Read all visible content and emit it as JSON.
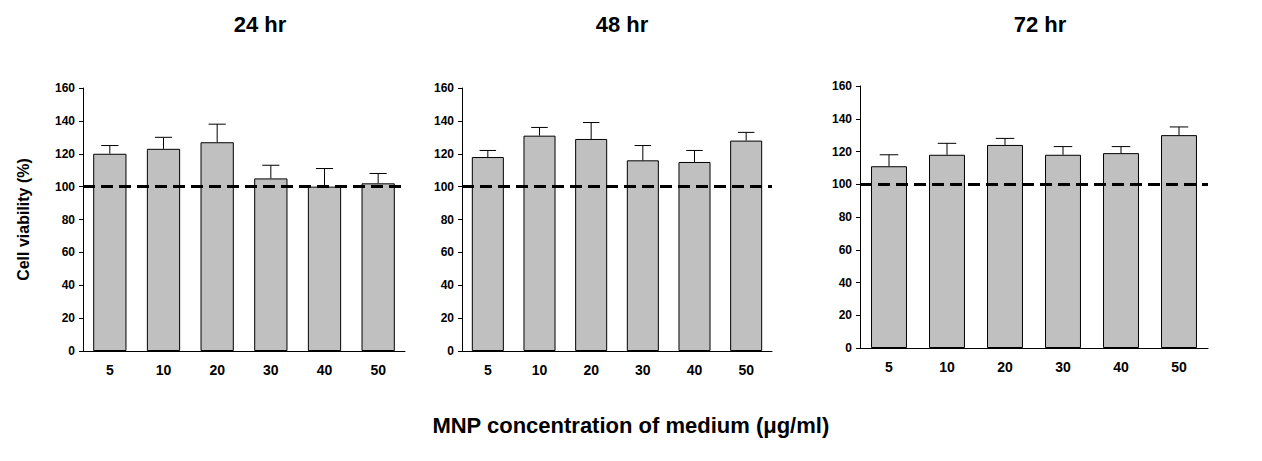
{
  "chart_data": [
    {
      "type": "bar",
      "title": "24 hr",
      "ylabel": "Cell viability (%)",
      "categories": [
        "5",
        "10",
        "20",
        "30",
        "40",
        "50"
      ],
      "values": [
        120,
        123,
        127,
        105,
        100,
        102
      ],
      "errors": [
        5,
        7,
        11,
        8,
        11,
        6
      ],
      "color": "#c0c0c0",
      "reference_line": 100,
      "ylim": [
        0,
        160
      ],
      "yticks": [
        0,
        20,
        40,
        60,
        80,
        100,
        120,
        140,
        160
      ]
    },
    {
      "type": "bar",
      "title": "48 hr",
      "categories": [
        "5",
        "10",
        "20",
        "30",
        "40",
        "50"
      ],
      "values": [
        118,
        131,
        129,
        116,
        115,
        128
      ],
      "errors": [
        4,
        5,
        10,
        9,
        7,
        5
      ],
      "color": "#c0c0c0",
      "reference_line": 100,
      "ylim": [
        0,
        160
      ],
      "yticks": [
        0,
        20,
        40,
        60,
        80,
        100,
        120,
        140,
        160
      ]
    },
    {
      "type": "bar",
      "title": "72 hr",
      "categories": [
        "5",
        "10",
        "20",
        "30",
        "40",
        "50"
      ],
      "values": [
        111,
        118,
        124,
        118,
        119,
        130
      ],
      "errors": [
        7,
        7,
        4,
        5,
        4,
        5
      ],
      "color": "#c0c0c0",
      "reference_line": 100,
      "ylim": [
        0,
        160
      ],
      "yticks": [
        0,
        20,
        40,
        60,
        80,
        100,
        120,
        140,
        160
      ]
    }
  ],
  "xlabel": "MNP concentration of medium (μg/ml)"
}
